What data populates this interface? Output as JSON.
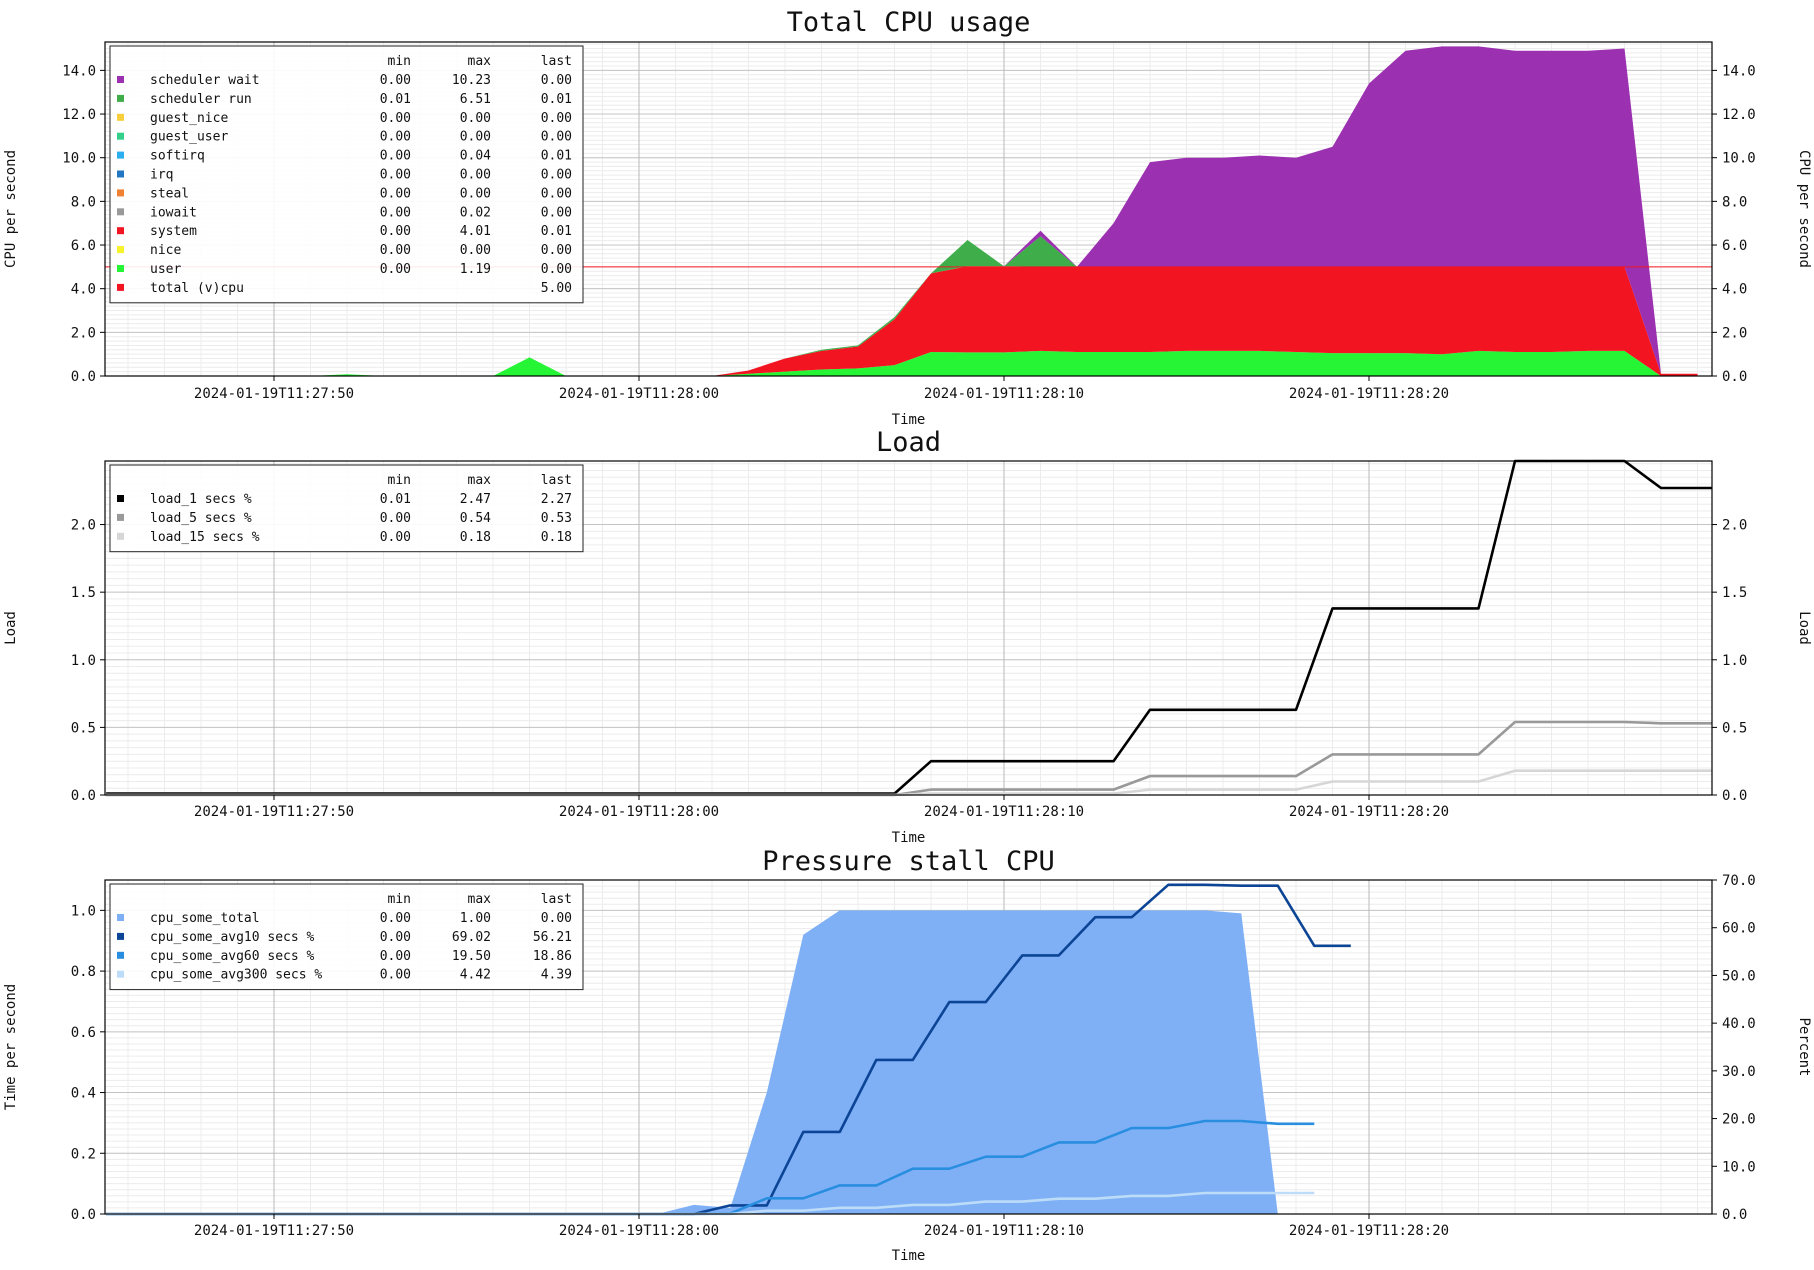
{
  "chart_data": [
    {
      "type": "area",
      "title": "Total CPU usage",
      "xlabel": "Time",
      "ylabel": "CPU per second",
      "ylabel_right": "CPU per second",
      "x_ticks": [
        "2024-01-19T11:27:50",
        "2024-01-19T11:28:00",
        "2024-01-19T11:28:10",
        "2024-01-19T11:28:20"
      ],
      "y_ticks": [
        "0.0",
        "2.0",
        "4.0",
        "6.0",
        "8.0",
        "10.0",
        "12.0",
        "14.0"
      ],
      "ylim": [
        0,
        15.3
      ],
      "grid": true,
      "legend_position": "top-left",
      "legend_header": {
        "min": "min",
        "max": "max",
        "last": "last"
      },
      "legend": [
        {
          "name": "scheduler wait",
          "color": "#9b30b0",
          "min": "0.00",
          "max": "10.23",
          "last": "0.00"
        },
        {
          "name": "scheduler run",
          "color": "#3fae4a",
          "min": "0.01",
          "max": "6.51",
          "last": "0.01"
        },
        {
          "name": "guest_nice",
          "color": "#f6cf3a",
          "min": "0.00",
          "max": "0.00",
          "last": "0.00"
        },
        {
          "name": "guest_user",
          "color": "#34d089",
          "min": "0.00",
          "max": "0.00",
          "last": "0.00"
        },
        {
          "name": "softirq",
          "color": "#2aaef0",
          "min": "0.00",
          "max": "0.04",
          "last": "0.01"
        },
        {
          "name": "irq",
          "color": "#2277c2",
          "min": "0.00",
          "max": "0.00",
          "last": "0.00"
        },
        {
          "name": "steal",
          "color": "#f08032",
          "min": "0.00",
          "max": "0.00",
          "last": "0.00"
        },
        {
          "name": "iowait",
          "color": "#999999",
          "min": "0.00",
          "max": "0.02",
          "last": "0.00"
        },
        {
          "name": "system",
          "color": "#f31422",
          "min": "0.00",
          "max": "4.01",
          "last": "0.01"
        },
        {
          "name": "nice",
          "color": "#f7f32a",
          "min": "0.00",
          "max": "0.00",
          "last": "0.00"
        },
        {
          "name": "user",
          "color": "#26f535",
          "min": "0.00",
          "max": "1.19",
          "last": "0.00"
        },
        {
          "name": "total (v)cpu",
          "color": "#f31422",
          "min": "",
          "max": "",
          "last": "5.00"
        }
      ],
      "reference_line": {
        "y": 5.0,
        "color": "#f31422"
      },
      "x_seconds": [
        -14,
        -9,
        -8,
        -7,
        -4,
        -3,
        -2,
        0,
        1,
        2,
        3,
        4,
        5,
        6,
        7,
        8,
        9,
        10,
        11,
        12,
        13,
        14,
        15,
        16,
        17,
        18,
        19,
        20,
        21,
        22,
        23,
        24,
        25,
        26,
        27,
        28,
        29
      ],
      "series": [
        {
          "name": "user",
          "color": "#26f535",
          "values": [
            0,
            0,
            0.08,
            0,
            0,
            0.85,
            0,
            0,
            0,
            0,
            0.1,
            0.2,
            0.3,
            0.35,
            0.5,
            1.1,
            1.08,
            1.08,
            1.15,
            1.1,
            1.1,
            1.1,
            1.15,
            1.15,
            1.15,
            1.1,
            1.05,
            1.05,
            1.05,
            1.0,
            1.15,
            1.1,
            1.1,
            1.15,
            1.15,
            0.0,
            0.0
          ]
        },
        {
          "name": "system",
          "color": "#f31422",
          "values": [
            0,
            0,
            0,
            0,
            0,
            0,
            0,
            0,
            0,
            0,
            0.15,
            0.6,
            0.85,
            1.0,
            2.1,
            3.6,
            3.95,
            3.95,
            3.85,
            3.9,
            3.9,
            3.9,
            3.85,
            3.85,
            3.85,
            3.9,
            3.95,
            3.95,
            3.95,
            4.0,
            3.85,
            3.9,
            3.9,
            3.85,
            3.85,
            0.1,
            0.1
          ]
        },
        {
          "name": "scheduler run",
          "color": "#3fae4a",
          "values": [
            0,
            0,
            0,
            0,
            0,
            0,
            0,
            0,
            0,
            0,
            0,
            0,
            0.05,
            0.05,
            0.1,
            0,
            1.2,
            0,
            1.4,
            0,
            0,
            0,
            0,
            0,
            0,
            0,
            0,
            0,
            0,
            0,
            0,
            0,
            0,
            0,
            0,
            0,
            0
          ]
        },
        {
          "name": "scheduler wait",
          "color": "#9b30b0",
          "values": [
            0,
            0,
            0,
            0,
            0,
            0,
            0,
            0,
            0,
            0,
            0,
            0,
            0,
            0,
            0,
            0,
            0,
            0,
            0.25,
            0,
            2.0,
            4.8,
            5.0,
            5.0,
            5.1,
            5.0,
            5.5,
            8.4,
            9.9,
            10.1,
            10.1,
            9.9,
            9.9,
            9.9,
            10.0,
            0,
            0
          ]
        }
      ]
    },
    {
      "type": "line",
      "title": "Load",
      "xlabel": "Time",
      "ylabel": "Load",
      "ylabel_right": "Load",
      "x_ticks": [
        "2024-01-19T11:27:50",
        "2024-01-19T11:28:00",
        "2024-01-19T11:28:10",
        "2024-01-19T11:28:20"
      ],
      "y_ticks": [
        "0.0",
        "0.5",
        "1.0",
        "1.5",
        "2.0"
      ],
      "ylim": [
        0,
        2.47
      ],
      "grid": true,
      "legend_position": "top-left",
      "legend_header": {
        "min": "min",
        "max": "max",
        "last": "last"
      },
      "legend": [
        {
          "name": "load_1 secs %",
          "color": "#000000",
          "min": "0.01",
          "max": "2.47",
          "last": "2.27"
        },
        {
          "name": "load_5 secs %",
          "color": "#999999",
          "min": "0.00",
          "max": "0.54",
          "last": "0.53"
        },
        {
          "name": "load_15 secs %",
          "color": "#d6d6d6",
          "min": "0.00",
          "max": "0.18",
          "last": "0.18"
        }
      ],
      "series": [
        {
          "name": "load_1 secs %",
          "color": "#000000",
          "x": [
            -14.6,
            7.0,
            8.0,
            13.0,
            14.0,
            18.0,
            19.0,
            23.0,
            24.0,
            27.0,
            28.0,
            29.0,
            32.0
          ],
          "y": [
            0.01,
            0.01,
            0.25,
            0.25,
            0.63,
            0.63,
            1.38,
            1.38,
            2.47,
            2.47,
            2.27,
            2.27,
            2.27
          ]
        },
        {
          "name": "load_5 secs %",
          "color": "#999999",
          "x": [
            -14.6,
            7.0,
            8.0,
            13.0,
            14.0,
            18.0,
            19.0,
            23.0,
            24.0,
            27.0,
            28.0,
            32.0
          ],
          "y": [
            0.0,
            0.0,
            0.04,
            0.04,
            0.14,
            0.14,
            0.3,
            0.3,
            0.54,
            0.54,
            0.53,
            0.53
          ]
        },
        {
          "name": "load_15 secs %",
          "color": "#d6d6d6",
          "x": [
            -14.6,
            7.0,
            8.0,
            13.0,
            14.0,
            18.0,
            19.0,
            23.0,
            24.0,
            32.0
          ],
          "y": [
            0.0,
            0.0,
            0.01,
            0.01,
            0.04,
            0.04,
            0.1,
            0.1,
            0.18,
            0.18
          ]
        }
      ]
    },
    {
      "type": "line",
      "title": "Pressure stall CPU",
      "xlabel": "Time",
      "ylabel": "Time per second",
      "ylabel_right": "Percent",
      "x_ticks": [
        "2024-01-19T11:27:50",
        "2024-01-19T11:28:00",
        "2024-01-19T11:28:10",
        "2024-01-19T11:28:20"
      ],
      "y_ticks": [
        "0.0",
        "0.2",
        "0.4",
        "0.6",
        "0.8",
        "1.0"
      ],
      "y_right_ticks": [
        "0.0",
        "10.0",
        "20.0",
        "30.0",
        "40.0",
        "50.0",
        "60.0",
        "70.0"
      ],
      "ylim": [
        0,
        1.1
      ],
      "ylim_right": [
        0,
        70
      ],
      "grid": true,
      "legend_position": "top-left",
      "legend_header": {
        "min": "min",
        "max": "max",
        "last": "last"
      },
      "legend": [
        {
          "name": "cpu_some_total",
          "color": "#7fb0f6",
          "min": "0.00",
          "max": "1.00",
          "last": "0.00"
        },
        {
          "name": "cpu_some_avg10 secs %",
          "color": "#0d4596",
          "min": "0.00",
          "max": "69.02",
          "last": "56.21"
        },
        {
          "name": "cpu_some_avg60 secs %",
          "color": "#2a8ee0",
          "min": "0.00",
          "max": "19.50",
          "last": "18.86"
        },
        {
          "name": "cpu_some_avg300 secs %",
          "color": "#bcdcf8",
          "min": "0.00",
          "max": "4.42",
          "last": "4.39"
        }
      ],
      "series": [
        {
          "name": "cpu_some_total",
          "color": "#7fb0f6",
          "axis": "left",
          "x": [
            -14.6,
            0.5,
            1.5,
            2.5,
            3.5,
            4.5,
            5.5,
            6.5,
            7.5,
            8.5,
            9.5,
            10.5,
            11.5,
            12.5,
            13.5,
            14.5,
            15.5,
            16.5,
            17.5,
            17.5
          ],
          "y": [
            0.0,
            0.0,
            0.03,
            0.02,
            0.4,
            0.92,
            1.0,
            1.0,
            1.0,
            1.0,
            1.0,
            1.0,
            1.0,
            1.0,
            1.0,
            1.0,
            1.0,
            0.99,
            0.0,
            0.0
          ]
        },
        {
          "name": "cpu_some_avg10 secs %",
          "color": "#0d4596",
          "axis": "right",
          "x": [
            -14.6,
            0.3,
            1.5,
            2.5,
            3.5,
            4.5,
            5.5,
            6.5,
            7.5,
            8.5,
            9.5,
            10.5,
            11.5,
            12.5,
            13.5,
            14.5,
            15.5,
            16.5,
            17.5,
            18.5,
            19.5
          ],
          "y": [
            0.0,
            0.0,
            0.0,
            1.8,
            1.8,
            17.2,
            17.2,
            32.3,
            32.3,
            44.4,
            44.4,
            54.2,
            54.2,
            62.2,
            62.2,
            69.0,
            69.0,
            68.8,
            68.8,
            56.2,
            56.2
          ]
        },
        {
          "name": "cpu_some_avg60 secs %",
          "color": "#2a8ee0",
          "axis": "right",
          "x": [
            -14.6,
            1.5,
            2.5,
            3.5,
            4.5,
            5.5,
            6.5,
            7.5,
            8.5,
            9.5,
            10.5,
            11.5,
            12.5,
            13.5,
            14.5,
            15.5,
            16.5,
            17.5,
            18.5
          ],
          "y": [
            0.0,
            0.0,
            0.1,
            3.3,
            3.3,
            6.0,
            6.0,
            9.5,
            9.5,
            12.0,
            12.0,
            15.0,
            15.0,
            18.0,
            18.0,
            19.5,
            19.5,
            18.9,
            18.9
          ]
        },
        {
          "name": "cpu_some_avg300 secs %",
          "color": "#bcdcf8",
          "axis": "right",
          "x": [
            -14.6,
            2.5,
            3.5,
            4.5,
            5.5,
            6.5,
            7.5,
            8.5,
            9.5,
            10.5,
            11.5,
            12.5,
            13.5,
            14.5,
            15.5,
            16.5,
            17.5,
            18.5
          ],
          "y": [
            0.0,
            0.0,
            0.7,
            0.7,
            1.3,
            1.3,
            1.9,
            1.9,
            2.6,
            2.6,
            3.2,
            3.2,
            3.8,
            3.8,
            4.4,
            4.4,
            4.4,
            4.4
          ]
        }
      ]
    }
  ]
}
